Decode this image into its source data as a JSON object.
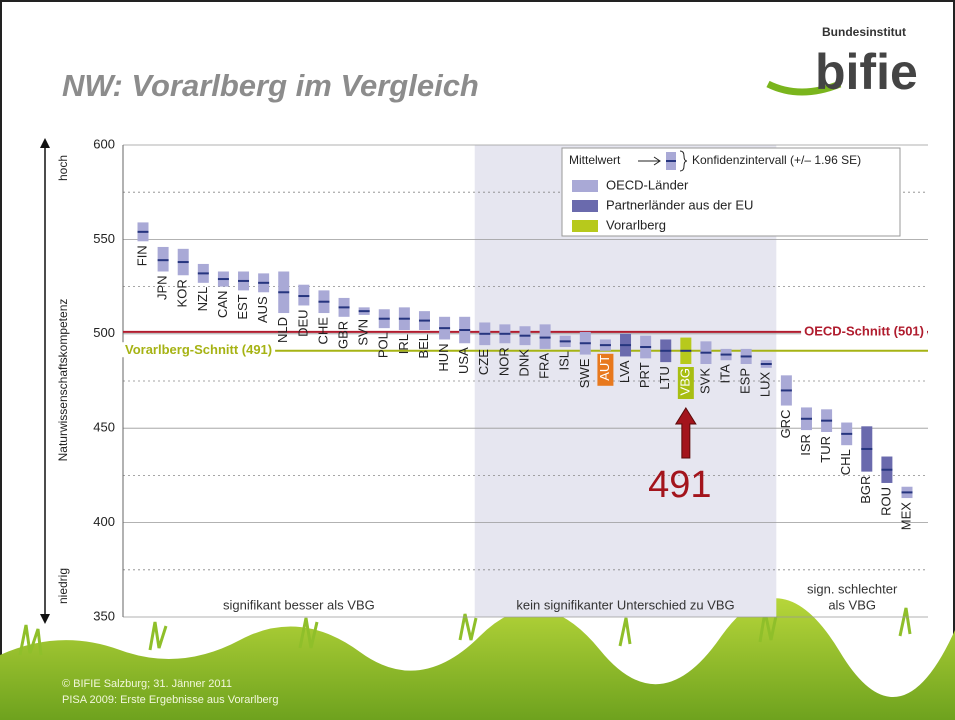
{
  "header": {
    "title": "NW: Vorarlberg im Vergleich",
    "logo_top": "Bundesinstitut",
    "logo_main": "bifie"
  },
  "footer": {
    "lines": [
      "© BIFIE Salzburg; 31. Jänner 2011",
      "PISA 2009: Erste Ergebnisse aus Vorarlberg"
    ]
  },
  "chart_data": {
    "type": "interval",
    "y_label": "Naturwissenschaftskompetenz",
    "y_high_label": "hoch",
    "y_low_label": "niedrig",
    "ylim": [
      350,
      600
    ],
    "yticks": [
      350,
      400,
      450,
      500,
      550,
      600
    ],
    "minor_gridlines": [
      375,
      425,
      475,
      525,
      575
    ],
    "legend_header": {
      "mean": "Mittelwert",
      "ci": "Konfidenzintervall (+/– 1.96 SE)"
    },
    "legend": [
      {
        "name": "OECD-Länder",
        "color": "#a9a9d6"
      },
      {
        "name": "Partnerländer aus der EU",
        "color": "#6a6aad"
      },
      {
        "name": "Vorarlberg",
        "color": "#b7c91c"
      }
    ],
    "mean_color": "#26357f",
    "categories": [
      "FIN",
      "JPN",
      "KOR",
      "NZL",
      "CAN",
      "EST",
      "AUS",
      "NLD",
      "DEU",
      "CHE",
      "GBR",
      "SVN",
      "POL",
      "IRL",
      "BEL",
      "HUN",
      "USA",
      "CZE",
      "NOR",
      "DNK",
      "FRA",
      "ISL",
      "SWE",
      "AUT",
      "LVA",
      "PRT",
      "LTU",
      "VBG",
      "SVK",
      "ITA",
      "ESP",
      "LUX",
      "GRC",
      "ISR",
      "TUR",
      "CHL",
      "BGR",
      "ROU",
      "MEX"
    ],
    "values": [
      554,
      539,
      538,
      532,
      529,
      528,
      527,
      522,
      520,
      517,
      514,
      512,
      508,
      508,
      507,
      503,
      502,
      500,
      500,
      499,
      498,
      496,
      495,
      494,
      494,
      493,
      491,
      491,
      490,
      489,
      488,
      484,
      470,
      455,
      454,
      447,
      439,
      428,
      416
    ],
    "lower": [
      549,
      533,
      531,
      527,
      525,
      523,
      522,
      511,
      515,
      511,
      509,
      510,
      503,
      502,
      502,
      497,
      495,
      494,
      495,
      494,
      492,
      493,
      489,
      491,
      488,
      487,
      485,
      484,
      484,
      486,
      484,
      482,
      462,
      449,
      448,
      441,
      427,
      421,
      413
    ],
    "upper": [
      559,
      546,
      545,
      537,
      533,
      533,
      532,
      533,
      526,
      523,
      519,
      514,
      513,
      514,
      512,
      509,
      509,
      506,
      505,
      504,
      505,
      499,
      501,
      497,
      500,
      499,
      497,
      498,
      496,
      492,
      492,
      486,
      478,
      461,
      460,
      453,
      451,
      435,
      419
    ],
    "legend_group": [
      0,
      0,
      0,
      0,
      0,
      0,
      0,
      0,
      0,
      0,
      0,
      0,
      0,
      0,
      0,
      0,
      0,
      0,
      0,
      0,
      0,
      0,
      0,
      0,
      1,
      0,
      1,
      2,
      0,
      0,
      0,
      0,
      0,
      0,
      0,
      0,
      1,
      1,
      0
    ],
    "label_colors": [
      null,
      null,
      null,
      null,
      null,
      null,
      null,
      null,
      null,
      null,
      null,
      null,
      null,
      null,
      null,
      null,
      null,
      null,
      null,
      null,
      null,
      null,
      null,
      "#e8791e",
      null,
      null,
      null,
      "#a8be12",
      null,
      null,
      null,
      null,
      null,
      null,
      null,
      null,
      null,
      null,
      null
    ],
    "references": [
      {
        "label": "OECD-Schnitt (501)",
        "value": 501,
        "color": "#b01c2e",
        "side": "right"
      },
      {
        "label": "Vorarlberg-Schnitt (491)",
        "value": 491,
        "color": "#a6b314",
        "side": "left"
      }
    ],
    "regions": [
      {
        "lines": [
          "signifikant besser als VBG"
        ],
        "from": 0,
        "to": 16,
        "shaded": false
      },
      {
        "lines": [
          "kein signifikanter Unterschied zu VBG"
        ],
        "from": 17,
        "to": 31,
        "shaded": true
      },
      {
        "lines": [
          "sign. schlechter",
          "als VBG"
        ],
        "from": 32,
        "to": 38,
        "shaded": false
      }
    ],
    "annotation": {
      "text": "491",
      "color": "#a3141c",
      "target": 27
    }
  }
}
